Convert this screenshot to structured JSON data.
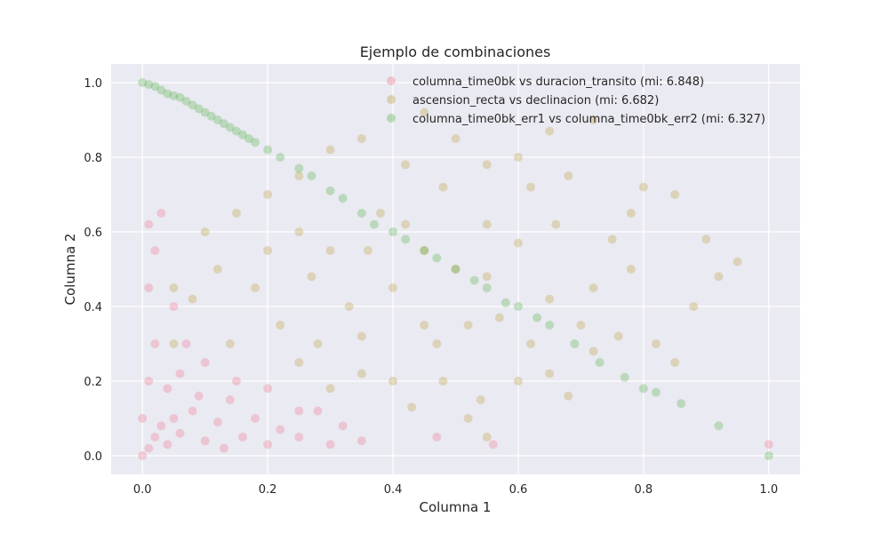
{
  "chart_data": {
    "type": "scatter",
    "title": "Ejemplo de combinaciones",
    "xlabel": "Columna 1",
    "ylabel": "Columna 2",
    "xlim": [
      -0.05,
      1.05
    ],
    "ylim": [
      -0.05,
      1.05
    ],
    "xticks": [
      "0.0",
      "0.2",
      "0.4",
      "0.6",
      "0.8",
      "1.0"
    ],
    "yticks": [
      "0.0",
      "0.2",
      "0.4",
      "0.6",
      "0.8",
      "1.0"
    ],
    "grid": true,
    "legend_position": "top-right",
    "series": [
      {
        "name": "columna_time0bk vs duracion_transito (mi: 6.848)",
        "color": "#f37088",
        "points": [
          [
            0.0,
            0.0
          ],
          [
            0.01,
            0.02
          ],
          [
            0.02,
            0.05
          ],
          [
            0.03,
            0.08
          ],
          [
            0.04,
            0.03
          ],
          [
            0.05,
            0.1
          ],
          [
            0.06,
            0.06
          ],
          [
            0.08,
            0.12
          ],
          [
            0.1,
            0.04
          ],
          [
            0.12,
            0.09
          ],
          [
            0.14,
            0.15
          ],
          [
            0.16,
            0.05
          ],
          [
            0.18,
            0.1
          ],
          [
            0.2,
            0.03
          ],
          [
            0.22,
            0.07
          ],
          [
            0.25,
            0.05
          ],
          [
            0.28,
            0.12
          ],
          [
            0.3,
            0.03
          ],
          [
            0.32,
            0.08
          ],
          [
            0.35,
            0.04
          ],
          [
            0.01,
            0.2
          ],
          [
            0.02,
            0.3
          ],
          [
            0.01,
            0.45
          ],
          [
            0.02,
            0.55
          ],
          [
            0.01,
            0.62
          ],
          [
            0.03,
            0.65
          ],
          [
            0.05,
            0.4
          ],
          [
            0.07,
            0.3
          ],
          [
            0.1,
            0.25
          ],
          [
            0.15,
            0.2
          ],
          [
            0.2,
            0.18
          ],
          [
            0.25,
            0.12
          ],
          [
            0.04,
            0.18
          ],
          [
            0.06,
            0.22
          ],
          [
            0.13,
            0.02
          ],
          [
            0.47,
            0.05
          ],
          [
            0.56,
            0.03
          ],
          [
            1.0,
            0.03
          ],
          [
            0.0,
            0.1
          ],
          [
            0.09,
            0.16
          ]
        ]
      },
      {
        "name": "ascension_recta vs declinacion (mi: 6.682)",
        "color": "#bb9a35",
        "points": [
          [
            0.43,
            0.13
          ],
          [
            0.48,
            0.2
          ],
          [
            0.47,
            0.3
          ],
          [
            0.52,
            0.1
          ],
          [
            0.55,
            0.05
          ],
          [
            0.54,
            0.15
          ],
          [
            0.6,
            0.2
          ],
          [
            0.57,
            0.37
          ],
          [
            0.62,
            0.3
          ],
          [
            0.65,
            0.22
          ],
          [
            0.68,
            0.16
          ],
          [
            0.7,
            0.35
          ],
          [
            0.72,
            0.45
          ],
          [
            0.76,
            0.32
          ],
          [
            0.82,
            0.3
          ],
          [
            0.85,
            0.25
          ],
          [
            0.75,
            0.58
          ],
          [
            0.66,
            0.62
          ],
          [
            0.6,
            0.57
          ],
          [
            0.55,
            0.48
          ],
          [
            0.5,
            0.5
          ],
          [
            0.45,
            0.55
          ],
          [
            0.42,
            0.62
          ],
          [
            0.38,
            0.65
          ],
          [
            0.36,
            0.55
          ],
          [
            0.4,
            0.45
          ],
          [
            0.33,
            0.4
          ],
          [
            0.28,
            0.3
          ],
          [
            0.25,
            0.25
          ],
          [
            0.35,
            0.22
          ],
          [
            0.4,
            0.2
          ],
          [
            0.3,
            0.18
          ],
          [
            0.22,
            0.35
          ],
          [
            0.18,
            0.45
          ],
          [
            0.12,
            0.5
          ],
          [
            0.08,
            0.42
          ],
          [
            0.05,
            0.45
          ],
          [
            0.1,
            0.6
          ],
          [
            0.15,
            0.65
          ],
          [
            0.2,
            0.7
          ],
          [
            0.25,
            0.75
          ],
          [
            0.3,
            0.82
          ],
          [
            0.35,
            0.85
          ],
          [
            0.45,
            0.92
          ],
          [
            0.5,
            0.85
          ],
          [
            0.55,
            0.78
          ],
          [
            0.6,
            0.8
          ],
          [
            0.65,
            0.87
          ],
          [
            0.72,
            0.9
          ],
          [
            0.78,
            0.65
          ],
          [
            0.85,
            0.7
          ],
          [
            0.9,
            0.58
          ],
          [
            0.95,
            0.52
          ],
          [
            0.92,
            0.48
          ],
          [
            0.88,
            0.4
          ],
          [
            0.3,
            0.55
          ],
          [
            0.25,
            0.6
          ],
          [
            0.2,
            0.55
          ],
          [
            0.42,
            0.78
          ],
          [
            0.48,
            0.72
          ],
          [
            0.55,
            0.62
          ],
          [
            0.62,
            0.72
          ],
          [
            0.68,
            0.75
          ],
          [
            0.8,
            0.72
          ],
          [
            0.14,
            0.3
          ],
          [
            0.05,
            0.3
          ],
          [
            0.27,
            0.48
          ],
          [
            0.35,
            0.32
          ],
          [
            0.45,
            0.35
          ],
          [
            0.65,
            0.42
          ],
          [
            0.78,
            0.5
          ],
          [
            0.72,
            0.28
          ],
          [
            0.52,
            0.35
          ]
        ]
      },
      {
        "name": "columna_time0bk_err1 vs columna_time0bk_err2 (mi: 6.327)",
        "color": "#4fae3e",
        "points": [
          [
            0.0,
            1.0
          ],
          [
            0.01,
            0.995
          ],
          [
            0.02,
            0.99
          ],
          [
            0.03,
            0.98
          ],
          [
            0.04,
            0.97
          ],
          [
            0.05,
            0.965
          ],
          [
            0.06,
            0.96
          ],
          [
            0.07,
            0.95
          ],
          [
            0.08,
            0.94
          ],
          [
            0.09,
            0.93
          ],
          [
            0.1,
            0.92
          ],
          [
            0.11,
            0.91
          ],
          [
            0.12,
            0.9
          ],
          [
            0.13,
            0.89
          ],
          [
            0.14,
            0.88
          ],
          [
            0.15,
            0.87
          ],
          [
            0.16,
            0.86
          ],
          [
            0.17,
            0.85
          ],
          [
            0.18,
            0.84
          ],
          [
            0.2,
            0.82
          ],
          [
            0.22,
            0.8
          ],
          [
            0.25,
            0.77
          ],
          [
            0.27,
            0.75
          ],
          [
            0.3,
            0.71
          ],
          [
            0.32,
            0.69
          ],
          [
            0.35,
            0.65
          ],
          [
            0.37,
            0.62
          ],
          [
            0.4,
            0.6
          ],
          [
            0.42,
            0.58
          ],
          [
            0.45,
            0.55
          ],
          [
            0.47,
            0.53
          ],
          [
            0.5,
            0.5
          ],
          [
            0.53,
            0.47
          ],
          [
            0.55,
            0.45
          ],
          [
            0.58,
            0.41
          ],
          [
            0.6,
            0.4
          ],
          [
            0.63,
            0.37
          ],
          [
            0.65,
            0.35
          ],
          [
            0.69,
            0.3
          ],
          [
            0.73,
            0.25
          ],
          [
            0.77,
            0.21
          ],
          [
            0.8,
            0.18
          ],
          [
            0.82,
            0.17
          ],
          [
            0.86,
            0.14
          ],
          [
            0.92,
            0.08
          ],
          [
            1.0,
            0.0
          ]
        ]
      }
    ]
  }
}
